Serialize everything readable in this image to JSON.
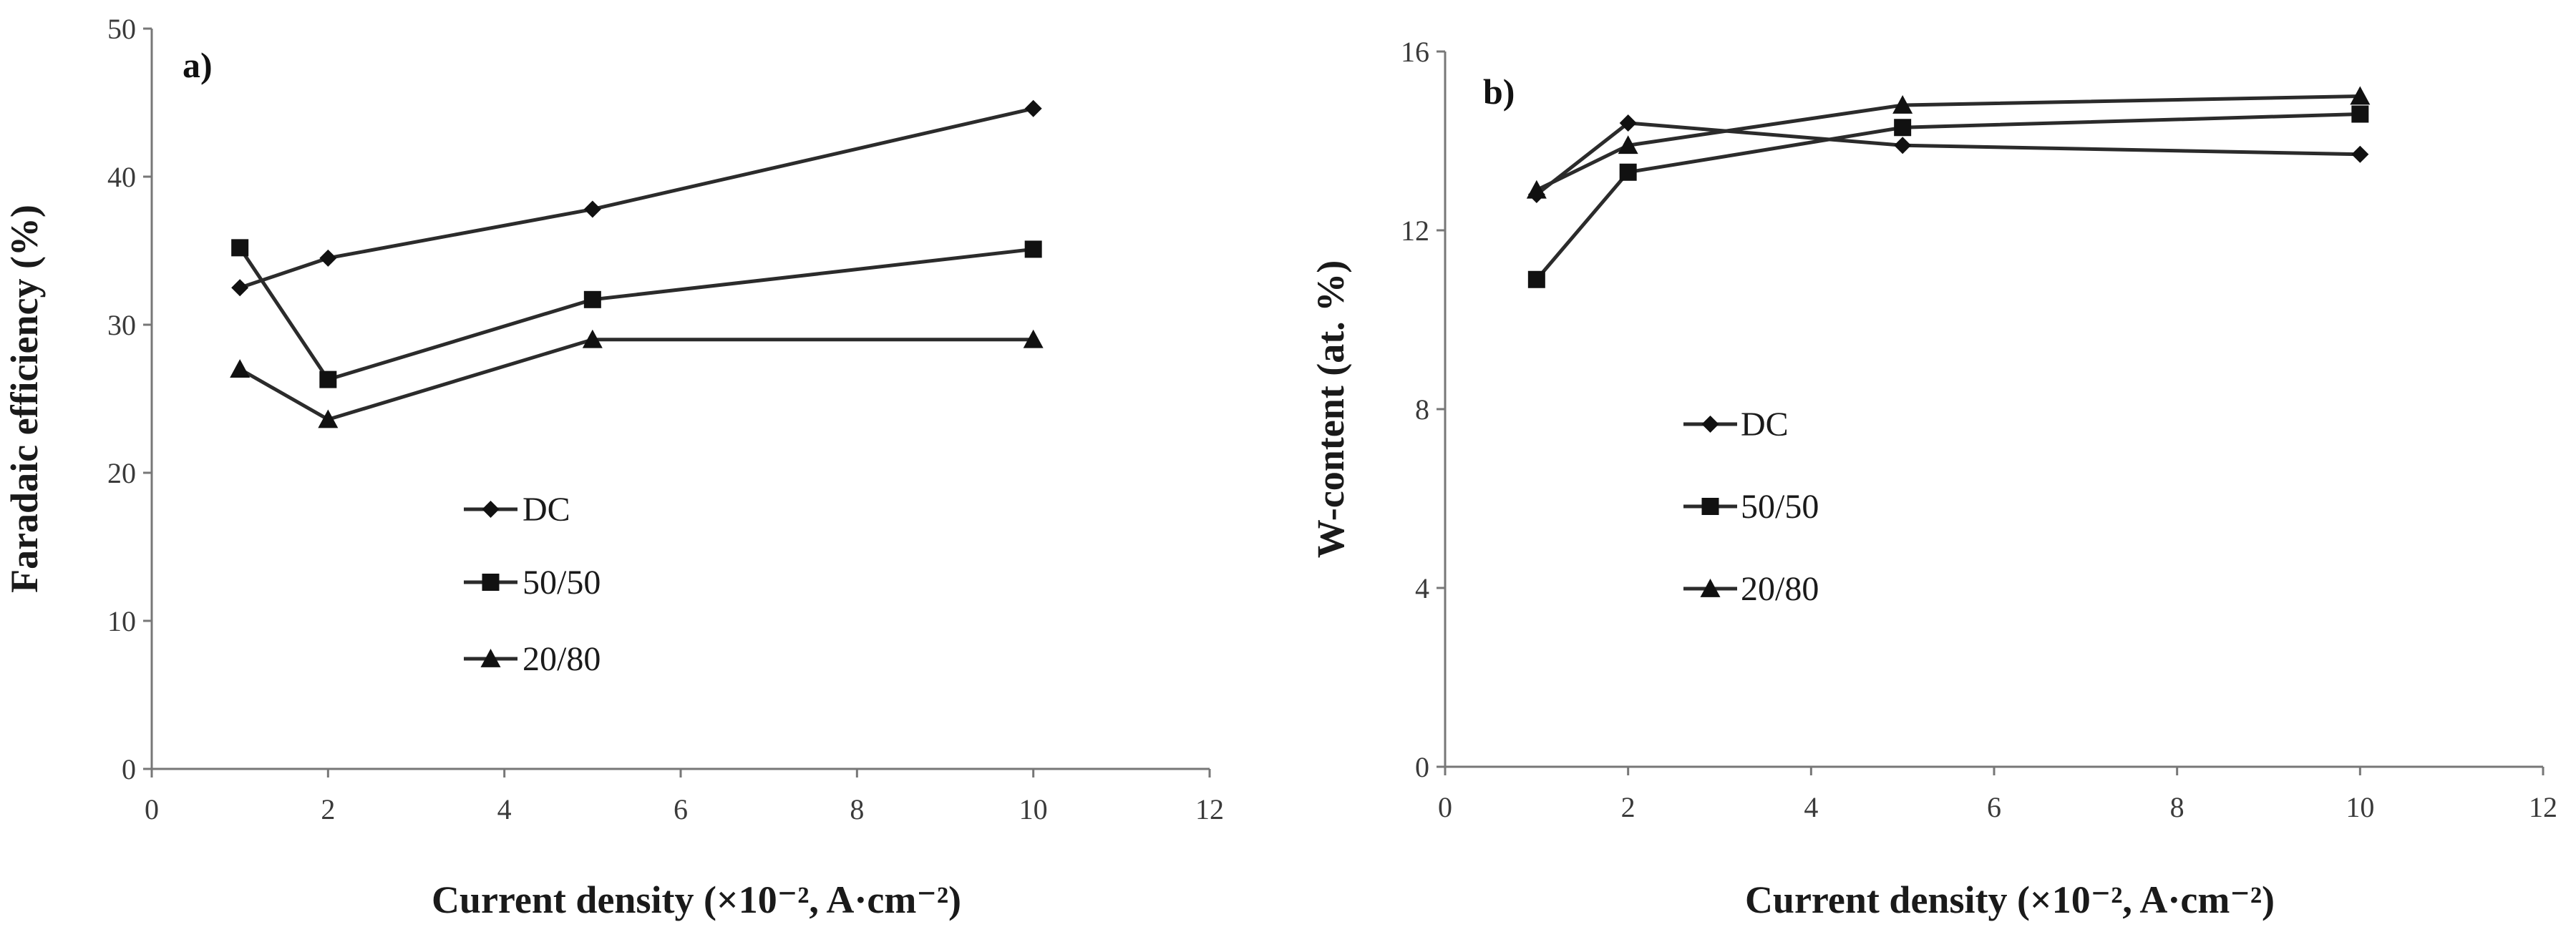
{
  "chart_data": [
    {
      "type": "line",
      "panel_label": "a)",
      "title": "",
      "xlabel": "Current density (×10⁻², A·cm⁻²)",
      "ylabel": "Faradaic efficiency (%)",
      "xlim": [
        0,
        12
      ],
      "ylim": [
        0,
        50
      ],
      "xticks": [
        0,
        2,
        4,
        6,
        8,
        10,
        12
      ],
      "yticks": [
        0,
        10,
        20,
        30,
        40,
        50
      ],
      "x": [
        1,
        2,
        5,
        10
      ],
      "series": [
        {
          "name": "DC",
          "marker": "diamond",
          "values": [
            32.5,
            34.5,
            37.8,
            44.6
          ]
        },
        {
          "name": "50/50",
          "marker": "square",
          "values": [
            35.2,
            26.3,
            31.7,
            35.1
          ]
        },
        {
          "name": "20/80",
          "marker": "triangle",
          "values": [
            27.0,
            23.6,
            29.0,
            29.0
          ]
        }
      ],
      "legend_position": "center"
    },
    {
      "type": "line",
      "panel_label": "b)",
      "title": "",
      "xlabel": "Current density (×10⁻², A·cm⁻²)",
      "ylabel": "W-content (at. %)",
      "xlim": [
        0,
        12
      ],
      "ylim": [
        0,
        16
      ],
      "xticks": [
        0,
        2,
        4,
        6,
        8,
        10,
        12
      ],
      "yticks": [
        0,
        4,
        8,
        12,
        16
      ],
      "x": [
        1,
        2,
        5,
        10
      ],
      "series": [
        {
          "name": "DC",
          "marker": "diamond",
          "values": [
            12.8,
            14.4,
            13.9,
            13.7
          ]
        },
        {
          "name": "50/50",
          "marker": "square",
          "values": [
            10.9,
            13.3,
            14.3,
            14.6
          ]
        },
        {
          "name": "20/80",
          "marker": "triangle",
          "values": [
            12.9,
            13.9,
            14.8,
            15.0
          ]
        }
      ],
      "legend_position": "center-left"
    }
  ]
}
